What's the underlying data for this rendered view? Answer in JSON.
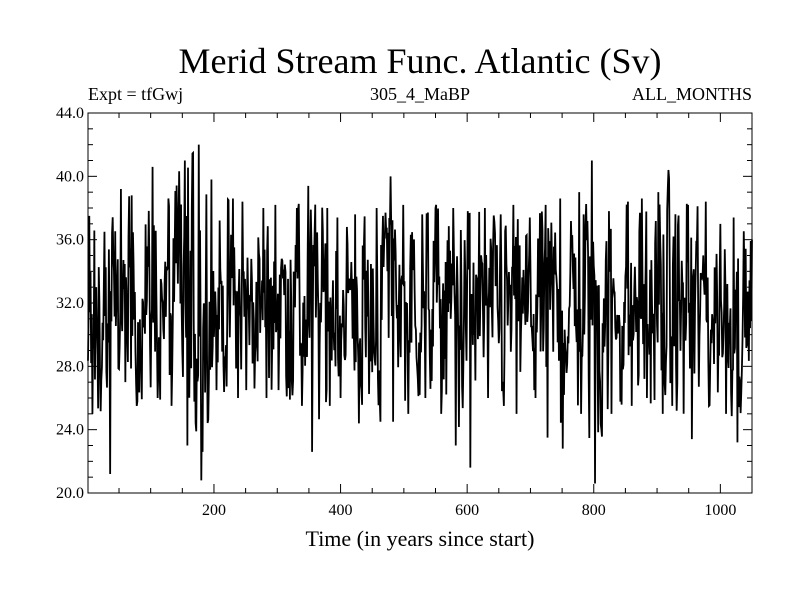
{
  "chart_data": {
    "type": "line",
    "title": "Merid Stream Func. Atlantic (Sv)",
    "left_label": "Expt = tfGwj",
    "center_label": "305_4_MaBP",
    "right_label": "ALL_MONTHS",
    "xlabel": "Time (in years since start)",
    "ylabel": "",
    "xlim": [
      1,
      1050
    ],
    "ylim": [
      20,
      44
    ],
    "x_ticks": [
      200,
      400,
      600,
      800,
      1000
    ],
    "x_tick_labels": [
      "200",
      "400",
      "600",
      "800",
      "1000"
    ],
    "y_ticks": [
      20,
      24,
      28,
      32,
      36,
      40,
      44
    ],
    "y_tick_labels": [
      "20.0",
      "24.0",
      "28.0",
      "32.0",
      "36.0",
      "40.0",
      "44.0"
    ],
    "grid": false,
    "legend": "none",
    "line_color": "#000000",
    "series": [
      {
        "x": [
          1,
          25,
          50,
          75,
          100,
          125,
          150,
          175,
          200,
          225,
          250,
          275,
          300,
          325,
          350,
          375,
          400,
          425,
          450,
          475,
          500,
          525,
          550,
          575,
          600,
          625,
          650,
          675,
          700,
          725,
          750,
          775,
          800,
          825,
          850,
          875,
          900,
          925,
          950,
          975,
          1000,
          1025,
          1050
        ],
        "values": [
          29.5,
          30.5,
          31.5,
          32.0,
          32.0,
          31.8,
          31.8,
          32.0,
          32.0,
          31.8,
          31.8,
          31.8,
          32.5,
          32.0,
          31.5,
          31.5,
          32.0,
          31.5,
          30.5,
          34.5,
          32.0,
          31.5,
          32.0,
          31.5,
          31.5,
          31.5,
          31.5,
          31.5,
          31.5,
          31.5,
          31.8,
          31.8,
          31.5,
          31.5,
          31.5,
          31.5,
          31.5,
          32.0,
          31.5,
          31.5,
          31.5,
          31.5,
          31.5
        ],
        "max": [
          37.5,
          36.5,
          39.2,
          38.8,
          40.6,
          38.6,
          41.0,
          42.0,
          39.8,
          38.6,
          38.4,
          38.0,
          38.2,
          38.0,
          39.4,
          38.0,
          37.4,
          37.6,
          38.0,
          40.0,
          38.2,
          37.6,
          38.2,
          38.0,
          37.8,
          38.0,
          37.6,
          38.2,
          37.4,
          38.2,
          38.6,
          39.0,
          41.0,
          37.8,
          38.4,
          38.6,
          39.0,
          40.4,
          38.2,
          38.4,
          37.0,
          37.4,
          36.0
        ],
        "min": [
          25.0,
          21.2,
          27.0,
          25.5,
          26.0,
          25.5,
          23.0,
          20.8,
          26.5,
          26.0,
          26.5,
          26.0,
          26.5,
          25.5,
          22.6,
          25.5,
          26.0,
          24.4,
          24.5,
          24.5,
          25.0,
          26.0,
          25.0,
          23.0,
          21.6,
          26.0,
          25.5,
          25.0,
          26.0,
          23.5,
          22.8,
          25.0,
          20.6,
          25.0,
          25.5,
          26.0,
          25.0,
          25.5,
          23.4,
          25.5,
          25.0,
          23.2,
          26.5
        ]
      }
    ]
  }
}
